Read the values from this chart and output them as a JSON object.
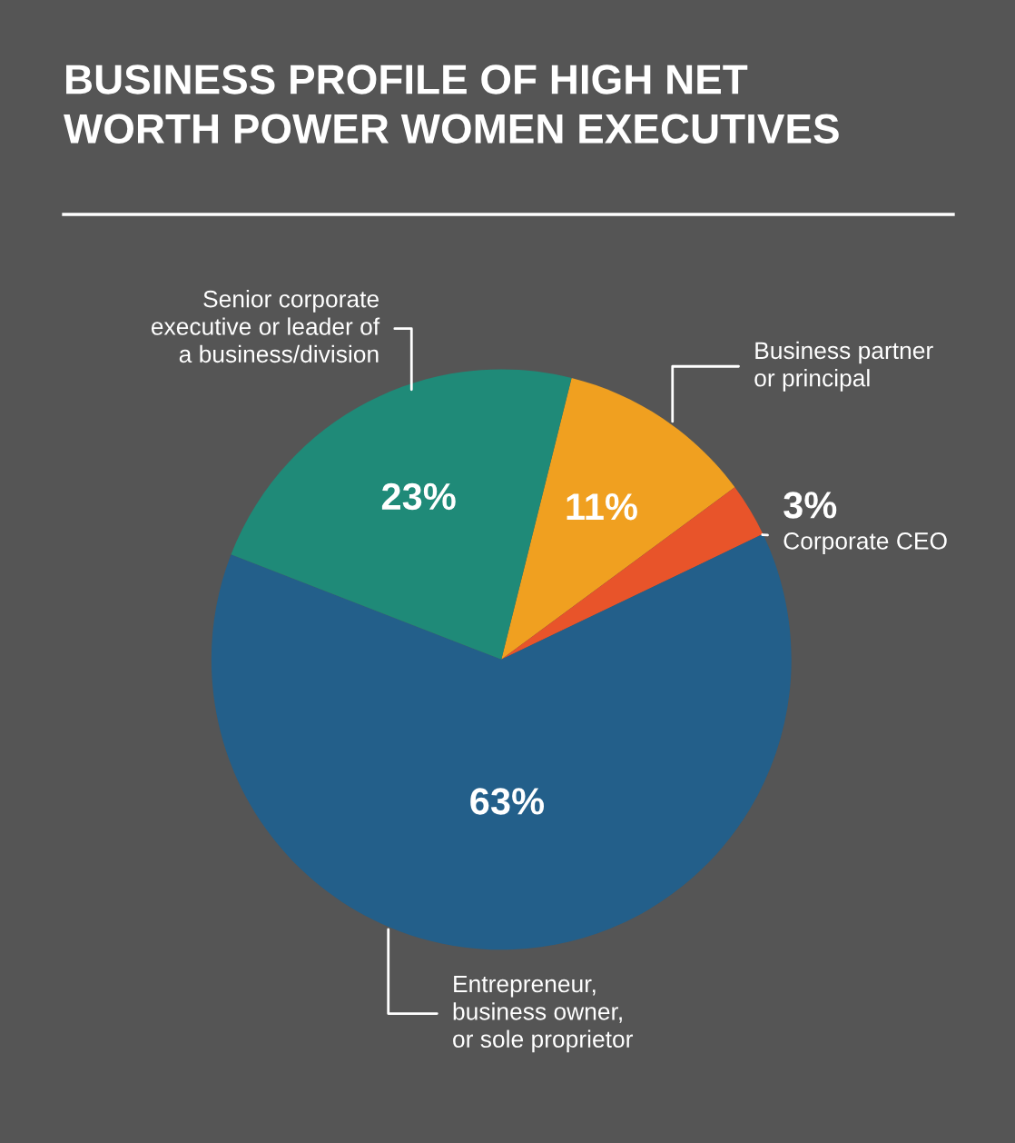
{
  "chart_data": {
    "type": "pie",
    "title": "BUSINESS PROFILE OF HIGH NET\nWORTH POWER WOMEN EXECUTIVES",
    "categories": [
      "Business partner\nor principal",
      "Corporate CEO",
      "Entrepreneur,\nbusiness owner,\nor sole proprietor",
      "Senior corporate\nexecutive or leader of\na business/division"
    ],
    "values": [
      11,
      3,
      63,
      23
    ],
    "value_labels": [
      "11%",
      "3%",
      "63%",
      "23%"
    ],
    "colors": [
      "#f0a020",
      "#e8542a",
      "#235f8a",
      "#1f8a78"
    ],
    "legend": false
  }
}
